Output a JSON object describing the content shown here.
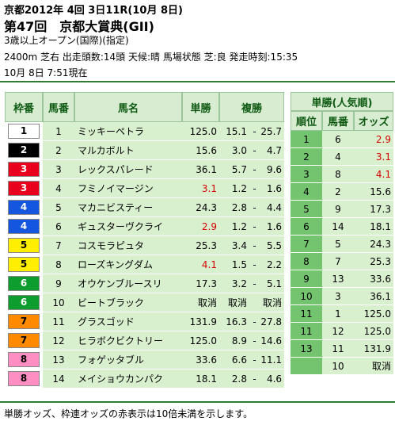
{
  "header": {
    "line1": "京都2012年 4回 3日11R(10月 8日)",
    "line2": "第47回　京都大賞典(GII)",
    "line3": "3歳以上オープン(国際)(指定)",
    "line4": "2400m 芝右 出走頭数:14頭 天候:晴 馬場状態 芝:良 発走時刻:15:35",
    "line5": "10月 8日 7:51現在"
  },
  "main_table": {
    "headers": [
      "枠番",
      "馬番",
      "馬名",
      "単勝",
      "複勝"
    ],
    "rows": [
      {
        "waku": "1",
        "uma": "1",
        "name": "ミッキーペトラ",
        "tan": "125.0",
        "fuku_min": "15.1",
        "dash": "-",
        "fuku_max": "25.7",
        "red": false
      },
      {
        "waku": "2",
        "uma": "2",
        "name": "マルカボルト",
        "tan": "15.6",
        "fuku_min": "3.0",
        "dash": "-",
        "fuku_max": "4.7",
        "red": false
      },
      {
        "waku": "3",
        "uma": "3",
        "name": "レックスパレード",
        "tan": "36.1",
        "fuku_min": "5.7",
        "dash": "-",
        "fuku_max": "9.6",
        "red": false
      },
      {
        "waku": "3",
        "uma": "4",
        "name": "フミノイマージン",
        "tan": "3.1",
        "fuku_min": "1.2",
        "dash": "-",
        "fuku_max": "1.6",
        "red": true
      },
      {
        "waku": "4",
        "uma": "5",
        "name": "マカニビスティー",
        "tan": "24.3",
        "fuku_min": "2.8",
        "dash": "-",
        "fuku_max": "4.4",
        "red": false
      },
      {
        "waku": "4",
        "uma": "6",
        "name": "ギュスターヴクライ",
        "tan": "2.9",
        "fuku_min": "1.2",
        "dash": "-",
        "fuku_max": "1.6",
        "red": true
      },
      {
        "waku": "5",
        "uma": "7",
        "name": "コスモラピュタ",
        "tan": "25.3",
        "fuku_min": "3.4",
        "dash": "-",
        "fuku_max": "5.5",
        "red": false
      },
      {
        "waku": "5",
        "uma": "8",
        "name": "ローズキングダム",
        "tan": "4.1",
        "fuku_min": "1.5",
        "dash": "-",
        "fuku_max": "2.2",
        "red": true
      },
      {
        "waku": "6",
        "uma": "9",
        "name": "オウケンブルースリ",
        "tan": "17.3",
        "fuku_min": "3.2",
        "dash": "-",
        "fuku_max": "5.1",
        "red": false
      },
      {
        "waku": "6",
        "uma": "10",
        "name": "ビートブラック",
        "tan": "取消",
        "fuku_min": "取消",
        "dash": "",
        "fuku_max": "取消",
        "red": false
      },
      {
        "waku": "7",
        "uma": "11",
        "name": "グラスゴッド",
        "tan": "131.9",
        "fuku_min": "16.3",
        "dash": "-",
        "fuku_max": "27.8",
        "red": false
      },
      {
        "waku": "7",
        "uma": "12",
        "name": "ヒラボクビクトリー",
        "tan": "125.0",
        "fuku_min": "8.9",
        "dash": "-",
        "fuku_max": "14.6",
        "red": false
      },
      {
        "waku": "8",
        "uma": "13",
        "name": "フォゲッタブル",
        "tan": "33.6",
        "fuku_min": "6.6",
        "dash": "-",
        "fuku_max": "11.1",
        "red": false
      },
      {
        "waku": "8",
        "uma": "14",
        "name": "メイショウカンパク",
        "tan": "18.1",
        "fuku_min": "2.8",
        "dash": "-",
        "fuku_max": "4.6",
        "red": false
      }
    ]
  },
  "side_table": {
    "title": "単勝(人気順)",
    "headers": [
      "順位",
      "馬番",
      "オッズ"
    ],
    "rows": [
      {
        "rank": "1",
        "uma": "6",
        "odds": "2.9",
        "red": true
      },
      {
        "rank": "2",
        "uma": "4",
        "odds": "3.1",
        "red": true
      },
      {
        "rank": "3",
        "uma": "8",
        "odds": "4.1",
        "red": true
      },
      {
        "rank": "4",
        "uma": "2",
        "odds": "15.6",
        "red": false
      },
      {
        "rank": "5",
        "uma": "9",
        "odds": "17.3",
        "red": false
      },
      {
        "rank": "6",
        "uma": "14",
        "odds": "18.1",
        "red": false
      },
      {
        "rank": "7",
        "uma": "5",
        "odds": "24.3",
        "red": false
      },
      {
        "rank": "8",
        "uma": "7",
        "odds": "25.3",
        "red": false
      },
      {
        "rank": "9",
        "uma": "13",
        "odds": "33.6",
        "red": false
      },
      {
        "rank": "10",
        "uma": "3",
        "odds": "36.1",
        "red": false
      },
      {
        "rank": "11",
        "uma": "1",
        "odds": "125.0",
        "red": false
      },
      {
        "rank": "11",
        "uma": "12",
        "odds": "125.0",
        "red": false
      },
      {
        "rank": "13",
        "uma": "11",
        "odds": "131.9",
        "red": false
      },
      {
        "rank": "",
        "uma": "10",
        "odds": "取消",
        "red": false
      }
    ]
  },
  "waku_colors": {
    "1": {
      "bg": "#ffffff",
      "fg": "#000000"
    },
    "2": {
      "bg": "#000000",
      "fg": "#ffffff"
    },
    "3": {
      "bg": "#e8001c",
      "fg": "#ffffff"
    },
    "4": {
      "bg": "#1556e0",
      "fg": "#ffffff"
    },
    "5": {
      "bg": "#ffee00",
      "fg": "#000000"
    },
    "6": {
      "bg": "#0d9d2f",
      "fg": "#ffffff"
    },
    "7": {
      "bg": "#ff8a00",
      "fg": "#000000"
    },
    "8": {
      "bg": "#ff8fc3",
      "fg": "#000000"
    }
  },
  "footer": {
    "note": "単勝オッズ、枠連オッズの赤表示は10倍未満を示します。"
  }
}
